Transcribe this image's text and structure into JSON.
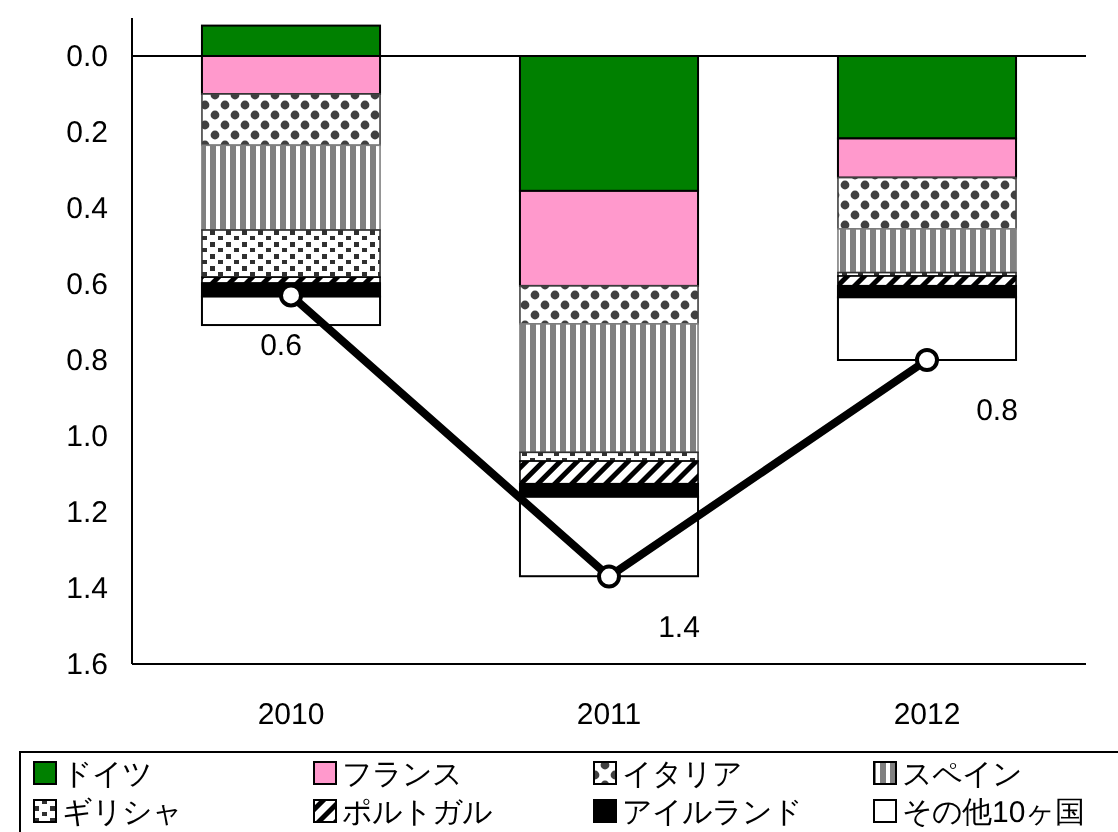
{
  "chart_data": {
    "type": "bar",
    "stacked": true,
    "categories": [
      "2010",
      "2011",
      "2012"
    ],
    "ylim": [
      1.6,
      -0.1
    ],
    "yticks": [
      {
        "value": 0,
        "label": "0.0"
      },
      0.2,
      0.4,
      0.6,
      0.8,
      {
        "value": 1,
        "label": "1.0"
      },
      1.2,
      1.4,
      1.6
    ],
    "legend": "bottom",
    "series": [
      {
        "name": "ドイツ",
        "color": "#008000",
        "values": [
          -0.08,
          0.355,
          0.217
        ]
      },
      {
        "name": "フランス",
        "color": "#ff99cc",
        "values": [
          0.1,
          0.25,
          0.103
        ]
      },
      {
        "name": "イタリア",
        "color": "#404040",
        "values": [
          0.135,
          0.1,
          0.135
        ]
      },
      {
        "name": "スペイン",
        "color": "#808080",
        "values": [
          0.223,
          0.338,
          0.115
        ]
      },
      {
        "name": "ギリシャ",
        "color": "#303030",
        "values": [
          0.124,
          0.023,
          0.009
        ]
      },
      {
        "name": "ポルトガル",
        "color": "#000001",
        "values": [
          0.016,
          0.06,
          0.026
        ]
      },
      {
        "name": "アイルランド",
        "color": "#000000",
        "values": [
          0.035,
          0.034,
          0.03
        ]
      },
      {
        "name": "その他10ヶ国",
        "color": "#ffffff",
        "values": [
          0.075,
          0.209,
          0.165
        ]
      },
      {
        "type": "line",
        "color": "#000000",
        "marker": "circle",
        "values": [
          0.63,
          1.37,
          0.8
        ],
        "value_labels": [
          "0.6",
          "1.4",
          "0.8"
        ]
      }
    ]
  }
}
